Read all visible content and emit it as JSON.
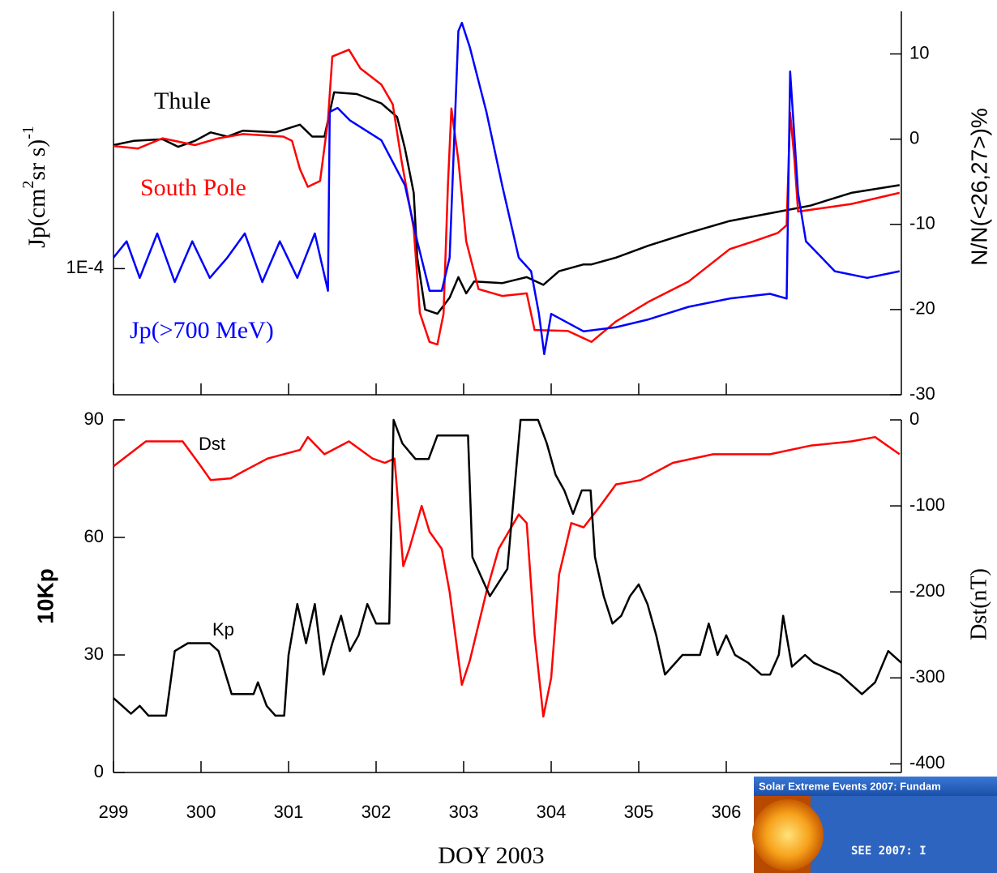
{
  "chart_data": [
    {
      "type": "line",
      "ylog": true,
      "ylabel_parts": [
        "Jp(cm",
        "2",
        "sr s)",
        "-1"
      ],
      "y2label": "N/N(<26,27>)%",
      "xlim": [
        299,
        308
      ],
      "ylim": [
        3.7e-05,
        0.00076
      ],
      "yticks": [
        {
          "value": 0.0001,
          "label": "1E-4"
        }
      ],
      "y2lim": [
        -30,
        15
      ],
      "y2ticks": [
        -30,
        -20,
        -10,
        0,
        10
      ],
      "series": [
        {
          "name": "Thule",
          "color": "#000000",
          "axis": "y2",
          "x": [
            299.0,
            299.23,
            299.56,
            299.74,
            299.93,
            300.11,
            300.3,
            300.48,
            300.85,
            301.13,
            301.27,
            301.41,
            301.45,
            301.52,
            301.78,
            302.06,
            302.24,
            302.33,
            302.43,
            302.47,
            302.56,
            302.7,
            302.84,
            302.94,
            303.03,
            303.12,
            303.44,
            303.72,
            303.91,
            304.09,
            304.37,
            304.46,
            304.74,
            305.11,
            305.57,
            306.04,
            306.5,
            306.96,
            307.43,
            307.98
          ],
          "values": [
            -0.7,
            -0.2,
            0,
            -0.9,
            -0.2,
            0.8,
            0.3,
            1.0,
            0.8,
            1.7,
            0.3,
            0.3,
            2.2,
            5.5,
            5.3,
            4.2,
            2.6,
            -1.1,
            -6.3,
            -13.9,
            -20.0,
            -20.5,
            -18.6,
            -16.2,
            -18.1,
            -16.7,
            -16.9,
            -16.2,
            -17.1,
            -15.5,
            -14.7,
            -14.7,
            -13.9,
            -12.5,
            -11.0,
            -9.6,
            -8.7,
            -7.8,
            -6.3,
            -5.4
          ]
        },
        {
          "name": "South Pole",
          "color": "#ff0000",
          "axis": "y2",
          "x": [
            299.0,
            299.28,
            299.56,
            299.93,
            300.2,
            300.48,
            300.94,
            301.04,
            301.13,
            301.22,
            301.36,
            301.45,
            301.5,
            301.69,
            301.82,
            302.06,
            302.19,
            302.29,
            302.43,
            302.5,
            302.61,
            302.7,
            302.77,
            302.82,
            302.86,
            302.94,
            303.03,
            303.17,
            303.44,
            303.72,
            303.81,
            304.19,
            304.46,
            304.74,
            305.11,
            305.57,
            306.04,
            306.31,
            306.59,
            306.69,
            306.73,
            306.78,
            306.82,
            306.96,
            307.43,
            307.98
          ],
          "values": [
            -0.8,
            -1.1,
            0.1,
            -0.7,
            0.1,
            0.6,
            0.3,
            -0.2,
            -3.5,
            -5.6,
            -4.9,
            2.2,
            9.7,
            10.5,
            8.3,
            6.4,
            4.1,
            -2.5,
            -10.5,
            -20.4,
            -23.8,
            -24.1,
            -20.5,
            -5.4,
            3.6,
            -2.5,
            -12.0,
            -17.6,
            -18.4,
            -18.1,
            -22.4,
            -22.5,
            -23.8,
            -21.4,
            -19.1,
            -16.7,
            -12.9,
            -12.0,
            -11.0,
            -10.1,
            3.1,
            -2.5,
            -8.5,
            -8.3,
            -7.6,
            -6.3
          ]
        },
        {
          "name": "Jp(>700 MeV)",
          "color": "#0000ff",
          "axis": "y",
          "x": [
            299.0,
            299.15,
            299.3,
            299.5,
            299.7,
            299.9,
            300.1,
            300.3,
            300.5,
            300.7,
            300.9,
            301.1,
            301.3,
            301.45,
            301.47,
            301.56,
            301.7,
            302.06,
            302.33,
            302.47,
            302.61,
            302.75,
            302.84,
            302.94,
            302.98,
            303.07,
            303.26,
            303.44,
            303.63,
            303.77,
            303.86,
            303.92,
            304.0,
            304.37,
            304.74,
            305.11,
            305.57,
            306.04,
            306.5,
            306.69,
            306.73,
            306.82,
            306.91,
            307.24,
            307.61,
            307.98
          ],
          "values": [
            0.000109,
            0.000124,
            9.3e-05,
            0.000132,
            9e-05,
            0.000124,
            9.3e-05,
            0.000109,
            0.000132,
            9e-05,
            0.000124,
            9.3e-05,
            0.000132,
            8.4e-05,
            0.000344,
            0.000355,
            0.000322,
            0.000275,
            0.000193,
            0.000124,
            8.4e-05,
            8.4e-05,
            0.000109,
            0.000651,
            0.000694,
            0.000573,
            0.000344,
            0.000193,
            0.000109,
            9.8e-05,
            7e-05,
            5.1e-05,
            7e-05,
            6.1e-05,
            6.3e-05,
            6.7e-05,
            7.4e-05,
            7.9e-05,
            8.2e-05,
            7.9e-05,
            0.000473,
            0.000181,
            0.000124,
            9.8e-05,
            9.3e-05,
            9.8e-05
          ]
        }
      ]
    },
    {
      "type": "line",
      "ylabel": "10Kp",
      "y2label": "Dst(nT)",
      "xlabel": "DOY 2003",
      "xlim": [
        299,
        308
      ],
      "xticks": [
        299,
        300,
        301,
        302,
        303,
        304,
        305,
        306
      ],
      "ylim": [
        0,
        90
      ],
      "yticks": [
        0,
        30,
        60,
        90
      ],
      "y2lim": [
        -410,
        0
      ],
      "y2ticks": [
        -400,
        -300,
        -200,
        -100,
        0
      ],
      "series": [
        {
          "name": "Dst",
          "color": "#ff0000",
          "axis": "y2",
          "x": [
            299.0,
            299.37,
            299.79,
            299.97,
            300.11,
            300.34,
            300.48,
            300.76,
            301.13,
            301.22,
            301.41,
            301.69,
            301.96,
            302.1,
            302.21,
            302.31,
            302.38,
            302.52,
            302.61,
            302.75,
            302.84,
            302.98,
            303.07,
            303.26,
            303.4,
            303.63,
            303.72,
            303.81,
            303.91,
            304.0,
            304.09,
            304.23,
            304.37,
            304.56,
            304.74,
            305.02,
            305.39,
            305.85,
            306.5,
            306.96,
            307.43,
            307.7,
            307.98
          ],
          "values": [
            -54,
            -25,
            -25,
            -50,
            -70,
            -68,
            -60,
            -45,
            -35,
            -20,
            -40,
            -25,
            -45,
            -50,
            -45,
            -170,
            -150,
            -100,
            -130,
            -150,
            -200,
            -308,
            -280,
            -200,
            -150,
            -110,
            -120,
            -250,
            -345,
            -300,
            -180,
            -120,
            -125,
            -100,
            -75,
            -70,
            -50,
            -40,
            -40,
            -30,
            -25,
            -20,
            -40
          ]
        },
        {
          "name": "Kp",
          "color": "#000000",
          "axis": "y",
          "x": [
            299.0,
            299.1,
            299.2,
            299.3,
            299.4,
            299.6,
            299.7,
            299.85,
            300.1,
            300.2,
            300.35,
            300.6,
            300.65,
            300.75,
            300.85,
            300.95,
            301.0,
            301.1,
            301.2,
            301.3,
            301.4,
            301.5,
            301.6,
            301.7,
            301.8,
            301.9,
            302.0,
            302.15,
            302.2,
            302.3,
            302.45,
            302.6,
            302.7,
            302.9,
            303.05,
            303.1,
            303.3,
            303.5,
            303.65,
            303.85,
            303.95,
            304.05,
            304.15,
            304.25,
            304.35,
            304.45,
            304.5,
            304.6,
            304.7,
            304.8,
            304.9,
            305.0,
            305.1,
            305.2,
            305.3,
            305.5,
            305.7,
            305.8,
            305.9,
            306.0,
            306.1,
            306.25,
            306.4,
            306.5,
            306.6,
            306.65,
            306.75,
            306.9,
            307.0,
            307.3,
            307.55,
            307.7,
            307.85,
            308.0
          ],
          "values": [
            19,
            17,
            15,
            17,
            14.5,
            14.5,
            31,
            33,
            33,
            31,
            20,
            20,
            23,
            17,
            14.5,
            14.5,
            30,
            43,
            33,
            43,
            25,
            33,
            40,
            31,
            35,
            43,
            38,
            38,
            90,
            84,
            80,
            80,
            86,
            86,
            86,
            55,
            45,
            52,
            90,
            90,
            84,
            76,
            72,
            66,
            72,
            72,
            55,
            45,
            38,
            40,
            45,
            48,
            43,
            35,
            25,
            30,
            30,
            38,
            30,
            35,
            30,
            28,
            25,
            25,
            30,
            40,
            27,
            30,
            28,
            25,
            20,
            23,
            31,
            28
          ]
        }
      ]
    }
  ],
  "inset": {
    "title": "Solar Extreme Events 2007: Fundam",
    "subtitle": "SEE 2007: I"
  }
}
